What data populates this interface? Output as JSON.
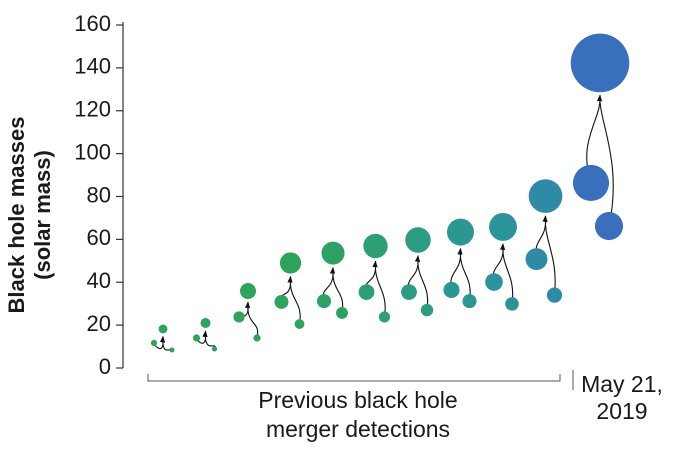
{
  "chart_data": {
    "type": "merger",
    "y_label": [
      "Black hole masses",
      "(solar mass)"
    ],
    "ylim": [
      0,
      160
    ],
    "yticks": [
      0,
      20,
      40,
      60,
      80,
      100,
      120,
      140,
      160
    ],
    "primary_masses": [
      11.7,
      14,
      23.8,
      30.8,
      31.2,
      35.4,
      35.4,
      36.4,
      40.1,
      50.8,
      86.3
    ],
    "secondary_masses": [
      8.4,
      8.9,
      14,
      20.5,
      25.7,
      23.8,
      27,
      31.2,
      29.9,
      34,
      66.2
    ],
    "final_masses": [
      18.2,
      21,
      35.9,
      49,
      53.6,
      56.9,
      59.7,
      63.4,
      65.8,
      80.2,
      142.3
    ],
    "colors": [
      "#2ea35c",
      "#2ea35c",
      "#2ea35c",
      "#2ea35c",
      "#2da164",
      "#2d9f74",
      "#2c9c82",
      "#2b9890",
      "#2b939c",
      "#2f8aa8",
      "#3a6fbd"
    ],
    "previous_label": [
      "Previous black hole",
      "merger detections"
    ],
    "latest_label": [
      "May 21,",
      "2019"
    ]
  }
}
